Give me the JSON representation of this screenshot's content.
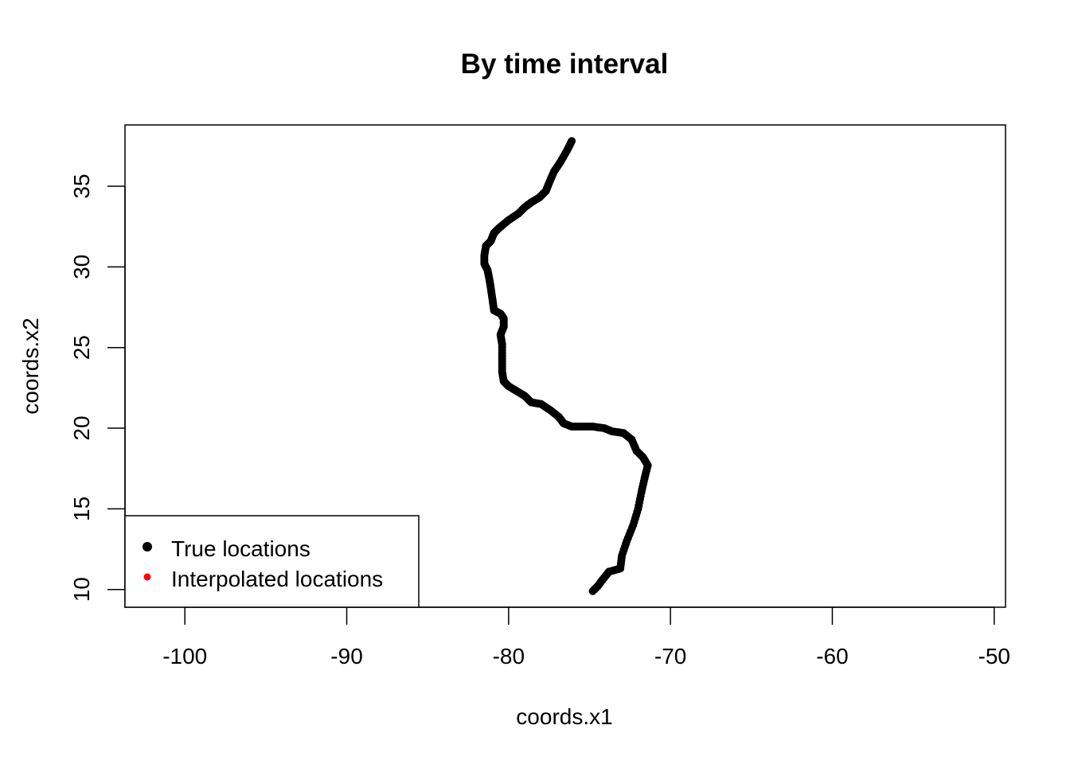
{
  "chart_data": {
    "type": "scatter",
    "title": "By time interval",
    "xlabel": "coords.x1",
    "ylabel": "coords.x2",
    "xlim": [
      -103.7,
      -49.3
    ],
    "ylim": [
      8.9,
      38.8
    ],
    "xticks": [
      -100,
      -90,
      -80,
      -70,
      -60,
      -50
    ],
    "yticks": [
      10,
      15,
      20,
      25,
      30,
      35
    ],
    "grid": false,
    "legend": {
      "position": "bottom-left",
      "entries": [
        {
          "label": "True locations",
          "color": "#000000"
        },
        {
          "label": "Interpolated locations",
          "color": "#ff0000"
        }
      ]
    },
    "series": [
      {
        "name": "True locations",
        "color": "#000000",
        "points": [
          [
            -76.1,
            37.8
          ],
          [
            -76.4,
            37.2
          ],
          [
            -76.8,
            36.5
          ],
          [
            -77.2,
            35.9
          ],
          [
            -77.5,
            35.2
          ],
          [
            -77.7,
            34.7
          ],
          [
            -78.1,
            34.3
          ],
          [
            -78.6,
            34.0
          ],
          [
            -79.0,
            33.7
          ],
          [
            -79.4,
            33.3
          ],
          [
            -80.0,
            32.9
          ],
          [
            -80.6,
            32.4
          ],
          [
            -80.9,
            32.1
          ],
          [
            -81.1,
            31.6
          ],
          [
            -81.4,
            31.3
          ],
          [
            -81.5,
            30.7
          ],
          [
            -81.5,
            30.2
          ],
          [
            -81.3,
            29.8
          ],
          [
            -81.2,
            29.3
          ],
          [
            -81.1,
            28.7
          ],
          [
            -81.0,
            28.0
          ],
          [
            -80.9,
            27.3
          ],
          [
            -80.5,
            27.1
          ],
          [
            -80.3,
            26.8
          ],
          [
            -80.3,
            26.3
          ],
          [
            -80.5,
            25.8
          ],
          [
            -80.4,
            25.2
          ],
          [
            -80.4,
            24.3
          ],
          [
            -80.4,
            23.5
          ],
          [
            -80.3,
            22.9
          ],
          [
            -80.0,
            22.6
          ],
          [
            -79.5,
            22.3
          ],
          [
            -79.0,
            22.0
          ],
          [
            -78.6,
            21.6
          ],
          [
            -78.0,
            21.5
          ],
          [
            -77.4,
            21.1
          ],
          [
            -76.9,
            20.7
          ],
          [
            -76.6,
            20.3
          ],
          [
            -76.1,
            20.1
          ],
          [
            -75.5,
            20.1
          ],
          [
            -74.8,
            20.1
          ],
          [
            -74.1,
            20.0
          ],
          [
            -73.6,
            19.8
          ],
          [
            -72.9,
            19.7
          ],
          [
            -72.4,
            19.3
          ],
          [
            -72.1,
            18.6
          ],
          [
            -71.7,
            18.2
          ],
          [
            -71.4,
            17.7
          ],
          [
            -71.6,
            16.9
          ],
          [
            -71.8,
            16.0
          ],
          [
            -72.0,
            15.0
          ],
          [
            -72.3,
            14.0
          ],
          [
            -72.7,
            13.0
          ],
          [
            -73.0,
            12.1
          ],
          [
            -73.1,
            11.3
          ],
          [
            -73.8,
            11.1
          ],
          [
            -74.2,
            10.6
          ],
          [
            -74.5,
            10.2
          ],
          [
            -74.8,
            9.9
          ]
        ]
      },
      {
        "name": "Interpolated locations",
        "color": "#ff0000",
        "points": []
      }
    ]
  }
}
